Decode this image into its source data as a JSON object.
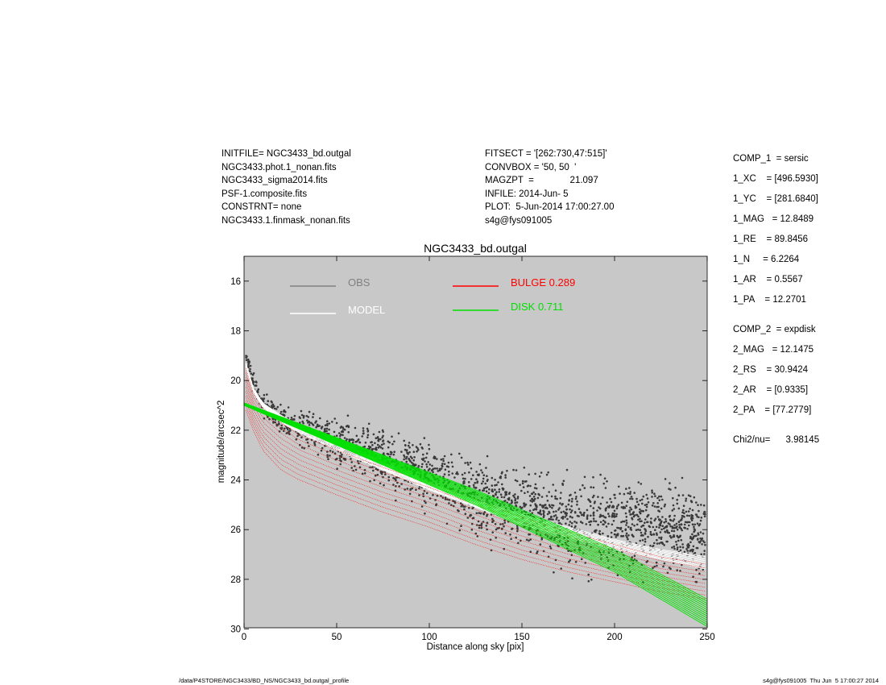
{
  "header_left": [
    "INITFILE= NGC3433_bd.outgal",
    "NGC3433.phot.1_nonan.fits",
    "NGC3433_sigma2014.fits",
    "PSF-1.composite.fits",
    "CONSTRNT= none",
    "NGC3433.1.finmask_nonan.fits"
  ],
  "header_mid": [
    "FITSECT = '[262:730,47:515]'",
    "CONVBOX = '50, 50  '",
    "MAGZPT  =              21.097",
    "INFILE: 2014-Jun- 5",
    "PLOT:  5-Jun-2014 17:00:27.00",
    "s4g@fys091005"
  ],
  "params": {
    "comp1": "COMP_1  = sersic",
    "xc": "1_XC    = [496.5930]",
    "yc": "1_YC    = [281.6840]",
    "mag1": "1_MAG   = 12.8489",
    "re": "1_RE    = 89.8456",
    "n": "1_N     = 6.2264",
    "ar1": "1_AR    = 0.5567",
    "pa1": "1_PA    = 12.2701",
    "comp2": "COMP_2  = expdisk",
    "mag2": "2_MAG   = 12.1475",
    "rs": "2_RS    = 30.9424",
    "ar2": "2_AR    = [0.9335]",
    "pa2": "2_PA    = [77.2779]",
    "chi": "Chi2/nu=      3.98145"
  },
  "footer": {
    "left": "/data/P4STORE/NGC3433/BD_NS/NGC3433_bd.outgal_profile",
    "right": "s4g@fys091005  Thu Jun  5 17:00:27 2014"
  },
  "colors": {
    "plot_bg": "#c8c8c8",
    "obs": "#3a3a3a",
    "model": "#ffffff",
    "bulge": "#ff0000",
    "disk": "#00e000",
    "obs_legend": "#808080"
  },
  "chart_data": {
    "type": "scatter",
    "title": "NGC3433_bd.outgal",
    "xlabel": "Distance along sky [pix]",
    "ylabel": "magnitude/arcsec^2",
    "xlim": [
      0,
      250
    ],
    "ylim": [
      30,
      15
    ],
    "y_inverted": true,
    "grid": false,
    "x_ticks": [
      0,
      50,
      100,
      150,
      200,
      250
    ],
    "y_ticks": [
      16,
      18,
      20,
      22,
      24,
      26,
      28,
      30
    ],
    "legend": [
      {
        "label": "OBS",
        "color": "#808080"
      },
      {
        "label": "MODEL",
        "color": "#ffffff"
      },
      {
        "label": "BULGE  0.289",
        "color": "#ff0000"
      },
      {
        "label": "DISK  0.711",
        "color": "#00e000"
      }
    ],
    "series": [
      {
        "name": "OBS",
        "kind": "points",
        "color": "#3a3a3a",
        "x": [
          1,
          5,
          10,
          20,
          30,
          40,
          50,
          60,
          70,
          80,
          90,
          100,
          110,
          120,
          130,
          140,
          150,
          160,
          170,
          180,
          190,
          200,
          210,
          220,
          230,
          240,
          249
        ],
        "y": [
          19.0,
          20.1,
          20.9,
          21.6,
          21.9,
          22.1,
          22.4,
          22.7,
          23.0,
          23.3,
          23.6,
          23.9,
          24.2,
          24.5,
          24.7,
          25.0,
          25.2,
          25.4,
          25.6,
          25.7,
          25.8,
          25.9,
          26.0,
          26.0,
          26.1,
          26.1,
          26.2
        ],
        "spread_mag": [
          0.2,
          0.4,
          0.5,
          0.6,
          0.8,
          0.9,
          1.0,
          1.0,
          1.0,
          1.1,
          1.2,
          1.3,
          1.4,
          1.5,
          1.6,
          1.6,
          1.7,
          1.7,
          1.8,
          1.8,
          1.8,
          1.8,
          1.9,
          1.9,
          1.9,
          1.9,
          1.9
        ]
      },
      {
        "name": "MODEL",
        "kind": "band",
        "color": "#ffffff",
        "x": [
          1,
          5,
          10,
          20,
          30,
          50,
          75,
          100,
          125,
          150,
          175,
          200,
          225,
          250
        ],
        "y_bright": [
          19.3,
          20.3,
          20.9,
          21.4,
          21.8,
          22.4,
          23.3,
          24.1,
          24.8,
          25.4,
          25.9,
          26.4,
          26.8,
          27.1
        ],
        "y_faint": [
          19.5,
          20.5,
          21.1,
          21.7,
          22.1,
          22.8,
          23.6,
          24.4,
          25.1,
          25.8,
          26.3,
          26.8,
          27.2,
          27.6
        ]
      },
      {
        "name": "BULGE  0.289",
        "kind": "band",
        "color": "#ff0000",
        "x": [
          1,
          5,
          10,
          20,
          30,
          50,
          75,
          100,
          125,
          150,
          175,
          200,
          225,
          250
        ],
        "y_bright": [
          19.5,
          20.5,
          21.1,
          21.7,
          22.2,
          22.8,
          23.5,
          24.1,
          24.8,
          25.5,
          26.1,
          26.6,
          27.1,
          27.4
        ],
        "y_faint": [
          21.2,
          22.0,
          22.8,
          23.6,
          24.0,
          24.6,
          25.3,
          25.9,
          26.6,
          27.2,
          27.7,
          28.1,
          28.5,
          28.8
        ]
      },
      {
        "name": "DISK  0.711",
        "kind": "band",
        "color": "#00e000",
        "x": [
          0,
          25,
          50,
          75,
          100,
          125,
          150,
          175,
          200,
          225,
          250
        ],
        "y_bright": [
          20.9,
          21.6,
          22.3,
          23.0,
          23.7,
          24.4,
          25.2,
          26.0,
          26.8,
          27.8,
          28.8
        ],
        "y_faint": [
          21.0,
          21.8,
          22.6,
          23.4,
          24.2,
          25.0,
          25.9,
          26.8,
          27.7,
          28.8,
          29.9
        ]
      }
    ]
  }
}
